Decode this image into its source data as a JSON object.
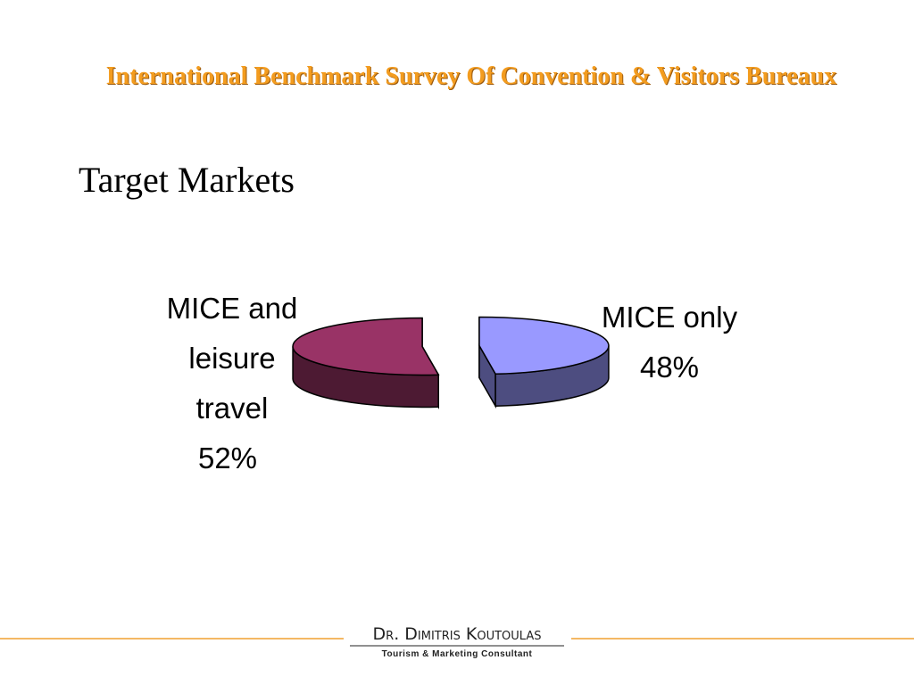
{
  "header": {
    "title": "International Benchmark Survey Of Convention & Visitors Bureaux"
  },
  "chart_data": {
    "type": "pie",
    "title": "Target Markets",
    "categories": [
      "MICE and leisure travel",
      "MICE only"
    ],
    "values": [
      52,
      48
    ],
    "value_labels": [
      "52%",
      "48%"
    ],
    "colors": [
      "#993366",
      "#9999ff"
    ]
  },
  "footer": {
    "name": "Dr. Dimitris Koutoulas",
    "tagline": "Tourism & Marketing Consultant"
  }
}
